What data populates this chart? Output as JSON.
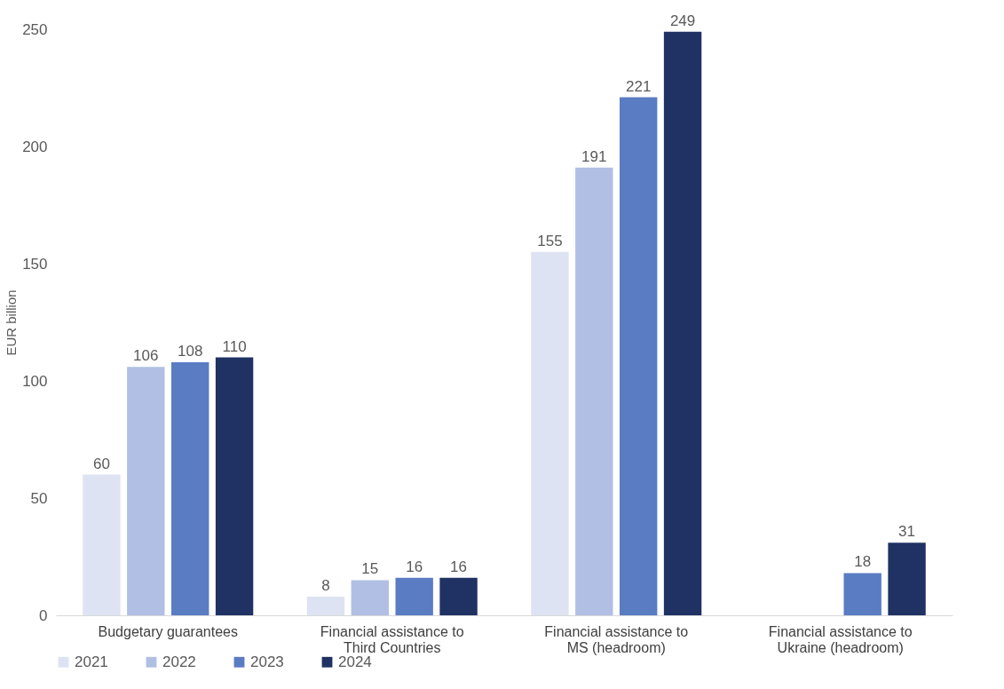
{
  "chart_data": {
    "type": "bar",
    "ylabel": "EUR billion",
    "categories": [
      "Budgetary guarantees",
      "Financial assistance to Third Countries",
      "Financial assistance to MS (headroom)",
      "Financial assistance to Ukraine (headroom)"
    ],
    "series": [
      {
        "name": "2021",
        "color": "#dde3f2",
        "values": [
          60,
          8,
          155,
          null
        ]
      },
      {
        "name": "2022",
        "color": "#b0bfe3",
        "values": [
          106,
          15,
          191,
          null
        ]
      },
      {
        "name": "2023",
        "color": "#5a7cc2",
        "values": [
          108,
          16,
          221,
          18
        ]
      },
      {
        "name": "2024",
        "color": "#1f3263",
        "values": [
          110,
          16,
          249,
          31
        ]
      }
    ],
    "ylim": [
      0,
      250
    ],
    "yticks": [
      0,
      50,
      100,
      150,
      200,
      250
    ],
    "grid": false,
    "legend": "bottom",
    "data_labels": true
  }
}
